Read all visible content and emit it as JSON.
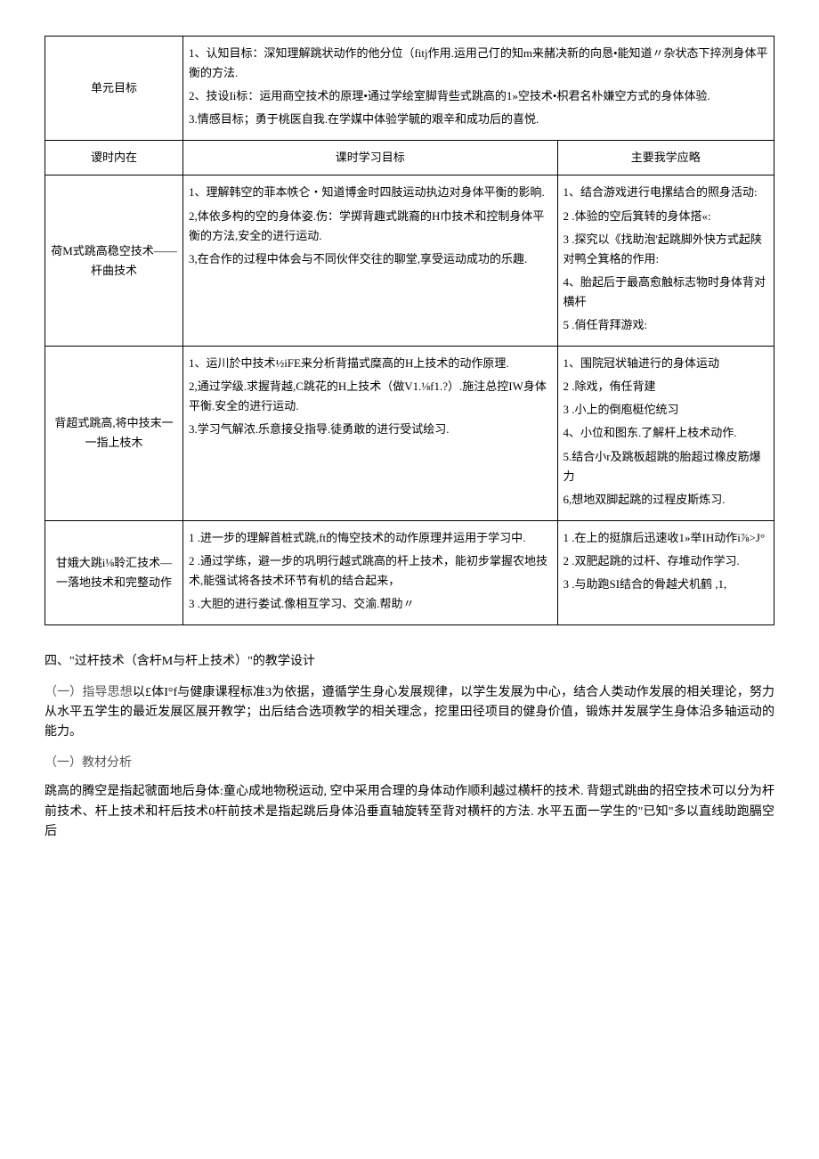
{
  "table": {
    "unit_goal_label": "单元目标",
    "unit_goal_content": {
      "line1": "1、认知目标：深知理解跳状动作的他分位（fitj作用.运用己仃的知m来赭决新的向恳•能知道〃杂状态下捽洌身体平衡的方法.",
      "line2": "2、技设Ii标：运用商空技术的原理•通过学绘室脚背些式跳高的1»空技术•枳君名朴嫌空方式的身体体验.",
      "line3": "3.情感目标；勇于桃医自我.在学媒中体验学毓的艰辛和成功后的喜悦."
    },
    "header_row": {
      "col1": "谡时内在",
      "col2": "课时学习目标",
      "col3": "主要我学应略"
    },
    "rows": [
      {
        "title": "荷M式跳高稳空技术——杆曲技术",
        "objectives": {
          "item1": "1、理解韩空的菲本帙仑・知道博金时四肢运动执边对身体平衡的影晌.",
          "item2": "2,体依多构的空的身体姿.伤：学掷背趣式跳裔的H巾技术和控制身体平衡的方法,安全的进行运动.",
          "item3": "3,在合作的过程中体会与不同伙伴交往的聊堂,享受运动成功的乐趣."
        },
        "strategies": {
          "item1": "1、结合游戏进行电摞结合的照身活动:",
          "item2": "2 .体验的空后箕转的身体搭«:",
          "item3": "3 .探究以《找助泡'起跳脚外快方式起陕对鸭仝箕格的作用:",
          "item4": "4、胎起后于最高愈触标志物时身体背对横杆",
          "item5": "5 .俏任背拜游戏:"
        }
      },
      {
        "title": "背超式跳高,将中技末一一指上枝木",
        "objectives": {
          "item1": "1、运川於中技术½iFE来分析背描式糜高的H上技术的动作原理.",
          "item2": "2,通过学级.求握背越,C跳花的H上技术（做V1.⅛f1.?）.施注总控IW身体平衡.安全的进行运动.",
          "item3": "3.学习气解浓.乐意接殳指导.徒勇敢的进行受试绘习."
        },
        "strategies": {
          "item1": "1、围院冠状轴进行的身体运动",
          "item2": "2 .除戏，侑任背建",
          "item3": "3 .小上的倒庖梃佗统习",
          "item4": "4、小位和图东.了解杆上枝术动作.",
          "item5": "5.结合小r及跳板超跳的胎超过橡皮筋爆力",
          "item6": "6,想地双脚起跳的过程皮斯炼习."
        }
      },
      {
        "title": "甘娥大跳i⅛聆汇技术—一落地技术和完整动作",
        "objectives": {
          "item1": "1 .进一步的理解首桩式跳,ft的悔空技术的动作原理并运用于学习中.",
          "item2": "2 .通过学练，避一步的巩明行越式跳高的杆上技术，能初步掌握农地技术,能强试将各技术环节有机的结合起来，",
          "item3": "3 .大胆的进行娄试.像相互学习、交渝.帮助〃"
        },
        "strategies": {
          "item1": "1 .在上的挺旗后迅速收1»举IH动作i⅞>J°",
          "item2": "2 .双肥起跳的过杆、存堆动作学习.",
          "item3": "3 .与助跑SI结合的骨越犬机鹤 ,1,"
        }
      }
    ]
  },
  "body_text": {
    "heading4": "四、\"过杆技术（含杆M与杆上技术）\"的教学设计",
    "sub1_heading": "（一）指导思想",
    "sub1_para": "以£体I°f与健康课程标准3为依据，遵循学生身心发展规律，以学生发展为中心，结合人类动作发展的相关理论，努力从水平五学生的最近发展区展开教学；出后结合选项教学的相关理念，挖里田径项目的健身价值，锻炼并发展学生身体沿多轴运动的能力。",
    "sub2_heading": "（一）教材分析",
    "sub2_para": "跳高的腾空是指起虢面地后身体:童心成地物税运动, 空中采用合理的身体动作顺利越过横杆的技术. 背翅式跳曲的招空技术可以分为杆前技术、杆上技术和杆后技术0杆前技术是指起跳后身体沿垂直轴旋转至背对横杆的方法. 水平五面一学生的\"已知\"多以直线助跑膈空后"
  }
}
